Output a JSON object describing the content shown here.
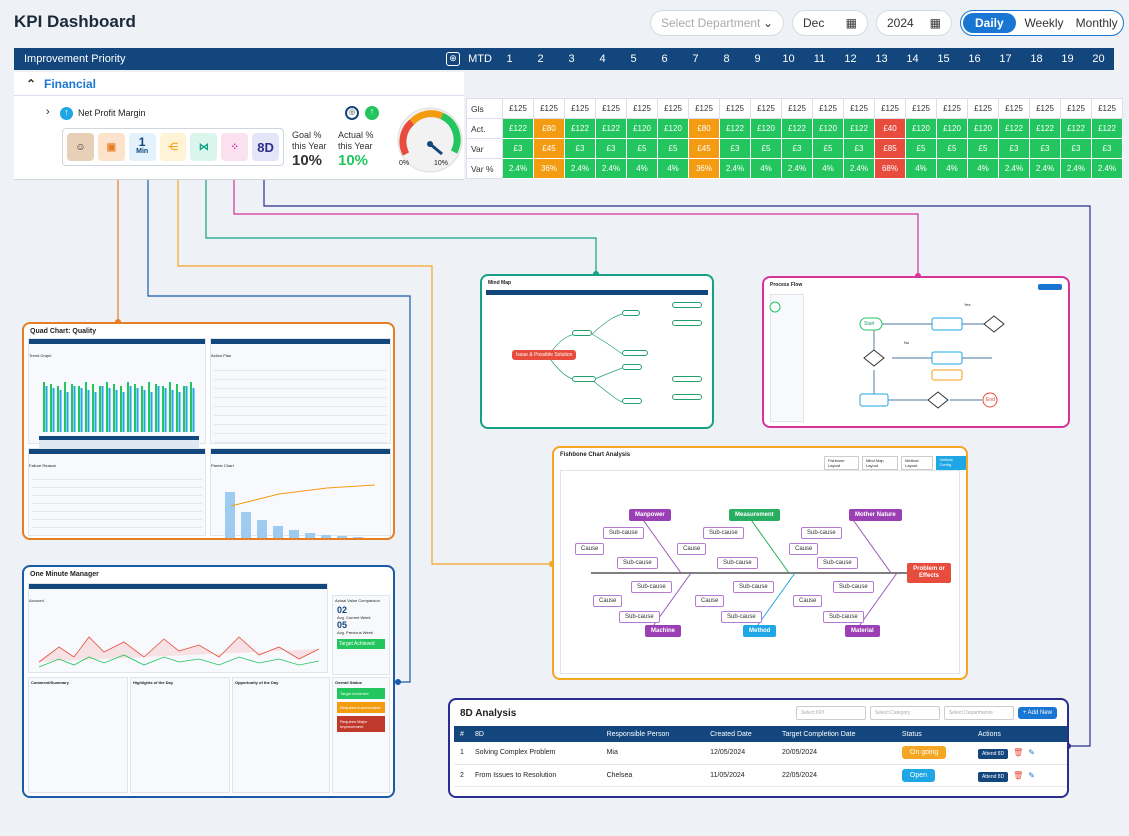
{
  "header": {
    "title": "KPI Dashboard",
    "department_placeholder": "Select Department",
    "month": "Dec",
    "year": "2024",
    "views": [
      "Daily",
      "Weekly",
      "Monthly"
    ],
    "active_view": "Daily"
  },
  "kpi_table": {
    "header_label": "Improvement Priority",
    "mtd": "MTD",
    "days": [
      "1",
      "2",
      "3",
      "4",
      "5",
      "6",
      "7",
      "8",
      "9",
      "10",
      "11",
      "12",
      "13",
      "14",
      "15",
      "16",
      "17",
      "18",
      "19",
      "20"
    ],
    "section": "Financial",
    "kpi_name": "Net Profit Margin",
    "min_value": "1",
    "min_unit": "Min",
    "tool_8d": "8D",
    "goal_label": "Goal % this Year",
    "goal_value": "10%",
    "actual_label": "Actual % this Year",
    "actual_value": "10%",
    "gauge_min": "0%",
    "gauge_max": "10%",
    "rows": [
      {
        "label": "Gls",
        "values": [
          "£125",
          "£125",
          "£125",
          "£125",
          "£125",
          "£125",
          "£125",
          "£125",
          "£125",
          "£125",
          "£125",
          "£125",
          "£125",
          "£125",
          "£125",
          "£125",
          "£125",
          "£125",
          "£125",
          "£125"
        ]
      },
      {
        "label": "Act.",
        "values": [
          "£122",
          "£80",
          "£122",
          "£122",
          "£120",
          "£120",
          "£80",
          "£122",
          "£120",
          "£122",
          "£120",
          "£122",
          "£40",
          "£120",
          "£120",
          "£120",
          "£122",
          "£122",
          "£122",
          "£122"
        ],
        "status": [
          "g",
          "o",
          "g",
          "g",
          "g",
          "g",
          "o",
          "g",
          "g",
          "g",
          "g",
          "g",
          "r",
          "g",
          "g",
          "g",
          "g",
          "g",
          "g",
          "g"
        ]
      },
      {
        "label": "Var",
        "values": [
          "£3",
          "£45",
          "£3",
          "£3",
          "£5",
          "£5",
          "£45",
          "£3",
          "£5",
          "£3",
          "£5",
          "£3",
          "£85",
          "£5",
          "£5",
          "£5",
          "£3",
          "£3",
          "£3",
          "£3"
        ],
        "status": [
          "g",
          "o",
          "g",
          "g",
          "g",
          "g",
          "o",
          "g",
          "g",
          "g",
          "g",
          "g",
          "r",
          "g",
          "g",
          "g",
          "g",
          "g",
          "g",
          "g"
        ]
      },
      {
        "label": "Var %",
        "values": [
          "2.4%",
          "36%",
          "2.4%",
          "2.4%",
          "4%",
          "4%",
          "36%",
          "2.4%",
          "4%",
          "2.4%",
          "4%",
          "2.4%",
          "68%",
          "4%",
          "4%",
          "4%",
          "2.4%",
          "2.4%",
          "2.4%",
          "2.4%"
        ],
        "status": [
          "g",
          "o",
          "g",
          "g",
          "g",
          "g",
          "o",
          "g",
          "g",
          "g",
          "g",
          "g",
          "r",
          "g",
          "g",
          "g",
          "g",
          "g",
          "g",
          "g"
        ]
      }
    ]
  },
  "panels": {
    "quad": {
      "title": "Quad Chart: Quality",
      "sub1": "Trend Graph",
      "sub2": "Action Plan",
      "sub3": "Failure Reason",
      "sub4": "Pareto Chart"
    },
    "omm": {
      "title": "One Minute Manager",
      "accrued": "Accrued",
      "comparison": "Actual Value Comparison",
      "current": "02",
      "current_label": "Avg. Current Week",
      "previous": "05",
      "previous_label": "Avg. Previous Week",
      "target": "Target Achieved",
      "comment": "Comment/Summary",
      "highlights": "Highlights of the Day",
      "opportunity": "Opportunity of the Day",
      "overall": "Overall Status",
      "s1": "Target Achieved",
      "s2": "Requires Improvement",
      "s3": "Requires Major Improvement"
    },
    "mindmap": {
      "title": "Mind Map",
      "center": "Issue & Possible Solution"
    },
    "process": {
      "title": "Process Flow",
      "start": "Start",
      "end": "End",
      "yes": "Yes",
      "no": "No"
    },
    "fishbone": {
      "title": "Fishbone Chart Analysis",
      "tabs": [
        "Fishbone Layout",
        "Mind Map Layout",
        "Method Layout",
        "Vertical Config"
      ],
      "categories": [
        "Manpower",
        "Measurement",
        "Mother Nature",
        "Machine",
        "Method",
        "Material"
      ],
      "problem": "Problem or Effects",
      "cause": "Cause",
      "subcause": "Sub-cause"
    }
  },
  "d8": {
    "title": "8D Analysis",
    "filters": [
      "Select KPI",
      "Select Category",
      "Select Departments"
    ],
    "add": "+ Add New",
    "columns": [
      "#",
      "8D",
      "Responsible Person",
      "Created Date",
      "Target Completion Date",
      "Status",
      "Actions"
    ],
    "rows": [
      {
        "n": "1",
        "name": "Solving Complex Problem",
        "person": "Mia",
        "created": "12/05/2024",
        "target": "20/05/2024",
        "status": "On going",
        "color": "#f5a623",
        "action": "Attend 8D"
      },
      {
        "n": "2",
        "name": "From Issues to Resolution",
        "person": "Chelsea",
        "created": "11/05/2024",
        "target": "22/05/2024",
        "status": "Open",
        "color": "#1ea7e4",
        "action": "Attend 8D"
      }
    ]
  },
  "colors": {
    "navy": "#12467d",
    "accent": "#1976d2",
    "green": "#22c55e",
    "orange": "#f39c12",
    "red": "#e74c3c"
  }
}
